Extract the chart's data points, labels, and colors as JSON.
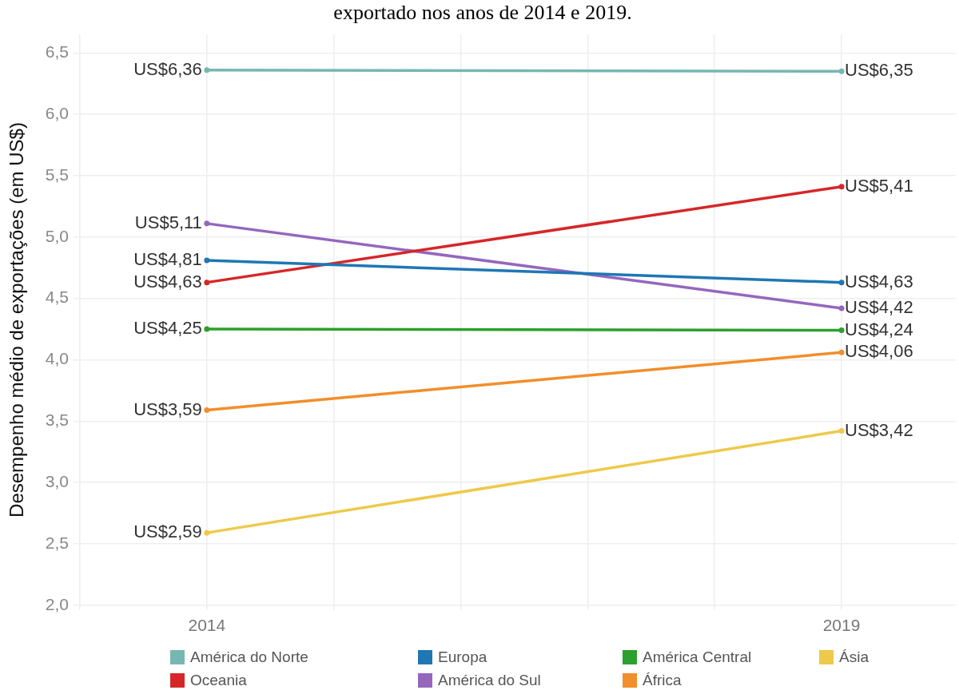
{
  "chart_data": {
    "type": "line",
    "title": "exportado nos anos de 2014 e 2019.",
    "ylabel": "Desempenho médio de exportações (em US$)",
    "x": [
      2014,
      2019
    ],
    "xlim": [
      2013,
      2019.9
    ],
    "xticks": [
      {
        "value": 2013,
        "label": null
      },
      2014,
      {
        "value": 2015,
        "label": null
      },
      {
        "value": 2016,
        "label": null
      },
      {
        "value": 2017,
        "label": null
      },
      {
        "value": 2018,
        "label": null
      },
      2019
    ],
    "ylim": [
      2.0,
      6.65
    ],
    "yticks": [
      {
        "value": 2.0,
        "label": "2,0"
      },
      {
        "value": 2.5,
        "label": "2,5"
      },
      {
        "value": 3.0,
        "label": "3,0"
      },
      {
        "value": 3.5,
        "label": "3,5"
      },
      {
        "value": 4.0,
        "label": "4,0"
      },
      {
        "value": 4.5,
        "label": "4,5"
      },
      {
        "value": 5.0,
        "label": "5,0"
      },
      {
        "value": 5.5,
        "label": "5,5"
      },
      {
        "value": 6.0,
        "label": "6,0"
      },
      {
        "value": 6.5,
        "label": "6,5"
      }
    ],
    "series": [
      {
        "name": "América do Norte",
        "color": "#76b7b2",
        "values": [
          6.36,
          6.35
        ],
        "value_labels": [
          "US$6,36",
          "US$6,35"
        ]
      },
      {
        "name": "Europa",
        "color": "#1f77b4",
        "values": [
          4.81,
          4.63
        ],
        "value_labels": [
          "US$4,81",
          "US$4,63"
        ]
      },
      {
        "name": "América Central",
        "color": "#2ca02c",
        "values": [
          4.25,
          4.24
        ],
        "value_labels": [
          "US$4,25",
          "US$4,24"
        ]
      },
      {
        "name": "Ásia",
        "color": "#eec94a",
        "values": [
          2.59,
          3.42
        ],
        "value_labels": [
          "US$2,59",
          "US$3,42"
        ]
      },
      {
        "name": "Oceania",
        "color": "#d62728",
        "values": [
          4.63,
          5.41
        ],
        "value_labels": [
          "US$4,63",
          "US$5,41"
        ]
      },
      {
        "name": "América do Sul",
        "color": "#9467bd",
        "values": [
          5.11,
          4.42
        ],
        "value_labels": [
          "US$5,11",
          "US$4,42"
        ]
      },
      {
        "name": "África",
        "color": "#f28e2b",
        "values": [
          3.59,
          4.06
        ],
        "value_labels": [
          "US$3,59",
          "US$4,06"
        ]
      }
    ],
    "legend": "bottom",
    "grid": true,
    "marker": "circle"
  }
}
